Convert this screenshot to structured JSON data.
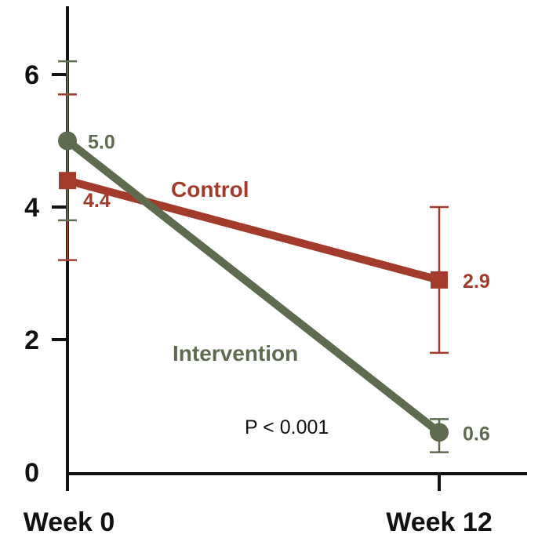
{
  "chart_data": {
    "type": "line",
    "title": "",
    "xlabel": "",
    "ylabel": "",
    "categories": [
      "Week 0",
      "Week 12"
    ],
    "y_ticks": [
      0,
      2,
      4,
      6
    ],
    "y_tick_labels": [
      "0",
      "2",
      "4",
      "6"
    ],
    "ylim": [
      0,
      7
    ],
    "grid": false,
    "series": [
      {
        "name": "Control",
        "color": "#A23B2C",
        "marker": "square",
        "values": [
          4.4,
          2.9
        ],
        "value_labels": [
          "4.4",
          "2.9"
        ],
        "error_low": [
          3.2,
          1.8
        ],
        "error_high": [
          5.7,
          4.0
        ]
      },
      {
        "name": "Intervention",
        "color": "#5E6B4F",
        "marker": "circle",
        "values": [
          5.0,
          0.6
        ],
        "value_labels": [
          "5.0",
          "0.6"
        ],
        "error_low": [
          3.8,
          0.3
        ],
        "error_high": [
          6.2,
          0.8
        ]
      }
    ],
    "annotations": [
      {
        "text": "P < 0.001"
      }
    ]
  }
}
